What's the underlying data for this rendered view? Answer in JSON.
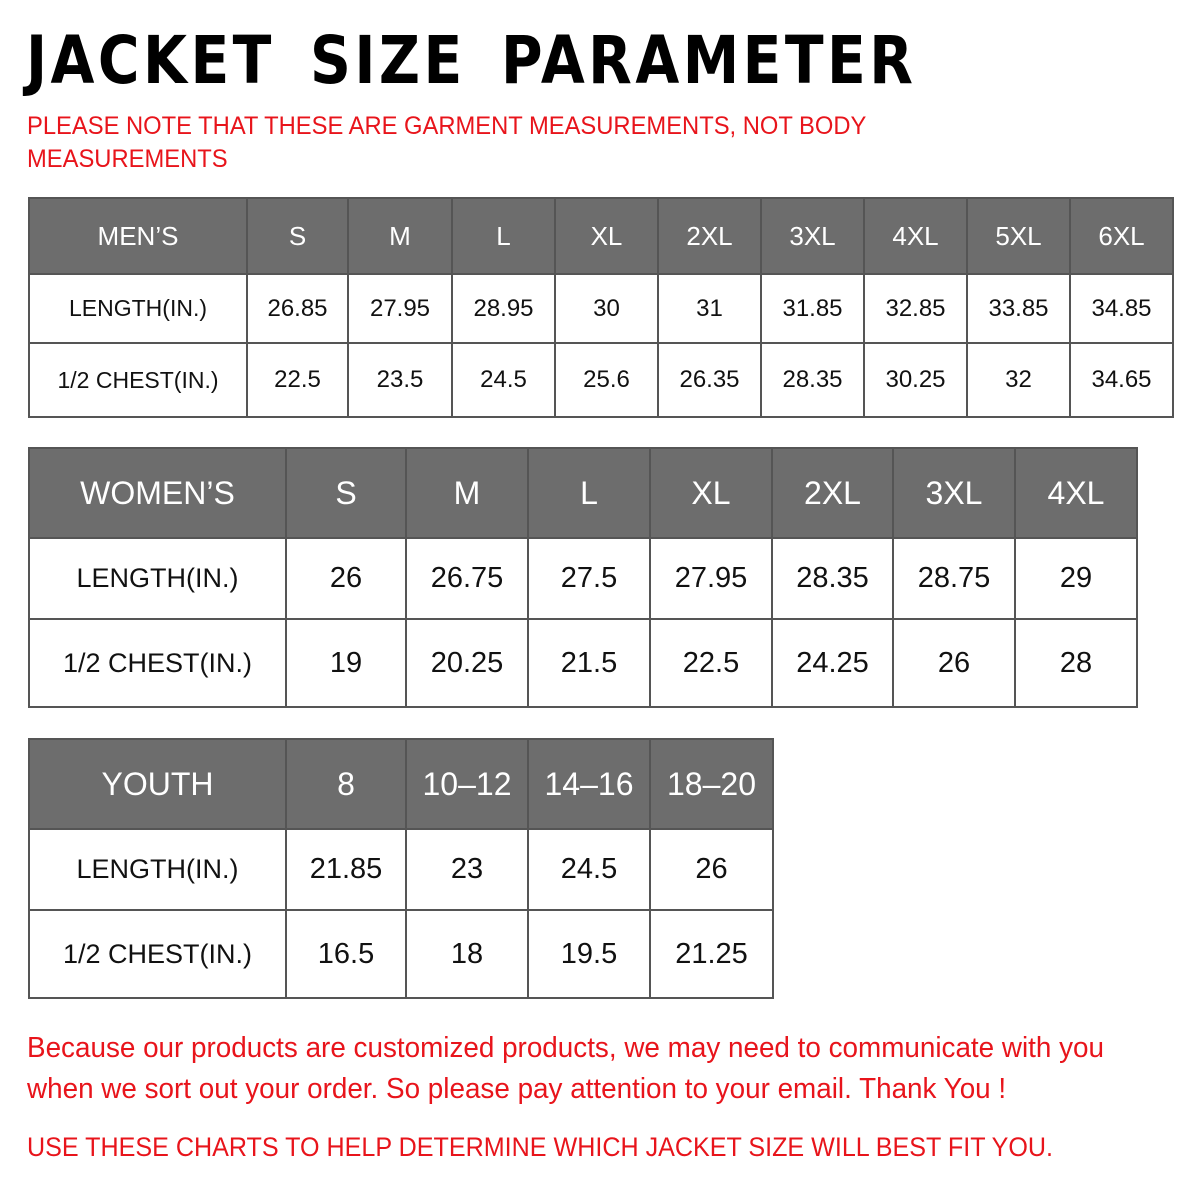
{
  "title": "JACKET SIZE PARAMETER",
  "note": "PLEASE NOTE THAT THESE ARE GARMENT MEASUREMENTS, NOT BODY MEASUREMENTS",
  "colors": {
    "header_bg": "#6d6d6d",
    "accent_red": "#e8141b"
  },
  "tables": [
    {
      "id": "men",
      "header": [
        "MEN’S",
        "S",
        "M",
        "L",
        "XL",
        "2XL",
        "3XL",
        "4XL",
        "5XL",
        "6XL"
      ],
      "rows": [
        [
          "LENGTH(IN.)",
          "26.85",
          "27.95",
          "28.95",
          "30",
          "31",
          "31.85",
          "32.85",
          "33.85",
          "34.85"
        ],
        [
          "1/2 CHEST(IN.)",
          "22.5",
          "23.5",
          "24.5",
          "25.6",
          "26.35",
          "28.35",
          "30.25",
          "32",
          "34.65"
        ]
      ]
    },
    {
      "id": "women",
      "header": [
        "WOMEN’S",
        "S",
        "M",
        "L",
        "XL",
        "2XL",
        "3XL",
        "4XL"
      ],
      "rows": [
        [
          "LENGTH(IN.)",
          "26",
          "26.75",
          "27.5",
          "27.95",
          "28.35",
          "28.75",
          "29"
        ],
        [
          "1/2 CHEST(IN.)",
          "19",
          "20.25",
          "21.5",
          "22.5",
          "24.25",
          "26",
          "28"
        ]
      ]
    },
    {
      "id": "youth",
      "header": [
        "YOUTH",
        "8",
        "10–12",
        "14–16",
        "18–20"
      ],
      "rows": [
        [
          "LENGTH(IN.)",
          "21.85",
          "23",
          "24.5",
          "26"
        ],
        [
          "1/2 CHEST(IN.)",
          "16.5",
          "18",
          "19.5",
          "21.25"
        ]
      ]
    }
  ],
  "footer": {
    "message": "Because our products are customized products, we may need to communicate with you when we sort out your order. So please pay attention to your email. Thank You !",
    "tip": "USE THESE CHARTS TO HELP DETERMINE WHICH JACKET SIZE WILL BEST FIT YOU."
  }
}
